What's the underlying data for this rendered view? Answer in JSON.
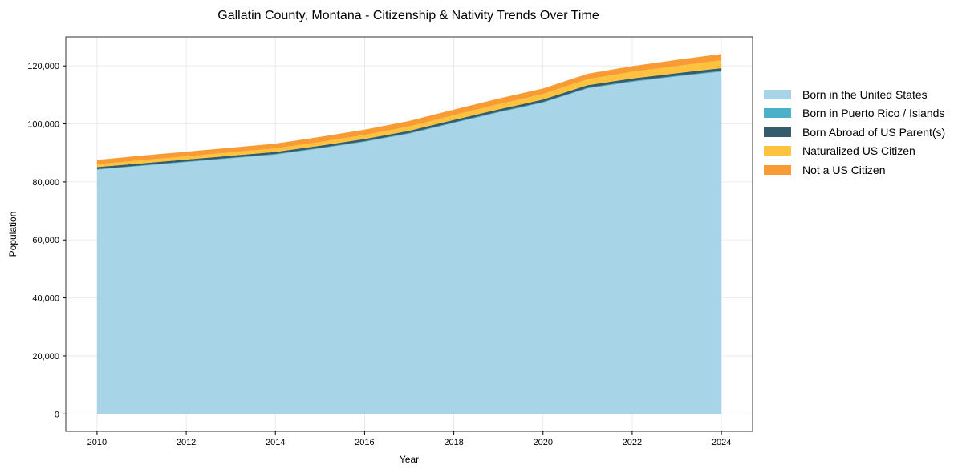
{
  "chart_data": {
    "type": "area",
    "stacked": true,
    "title": "Gallatin County, Montana - Citizenship & Nativity Trends Over Time",
    "xlabel": "Year",
    "ylabel": "Population",
    "xlim": [
      2009.3,
      2024.7
    ],
    "ylim": [
      -6000,
      130000
    ],
    "xticks": [
      "2010",
      "2012",
      "2014",
      "2016",
      "2018",
      "2020",
      "2022",
      "2024"
    ],
    "yticks": [
      "0",
      "20,000",
      "40,000",
      "60,000",
      "80,000",
      "100,000",
      "120,000"
    ],
    "grid": true,
    "legend_position": "right",
    "x": [
      2010,
      2011,
      2012,
      2013,
      2014,
      2015,
      2016,
      2017,
      2018,
      2019,
      2020,
      2021,
      2022,
      2023,
      2024
    ],
    "series": [
      {
        "name": "Born in the United States",
        "color": "#9ecfe6",
        "values": [
          84200,
          85500,
          86800,
          88100,
          89400,
          91500,
          93800,
          96600,
          100300,
          103900,
          107300,
          112200,
          114500,
          116300,
          118000
        ]
      },
      {
        "name": "Born in Puerto Rico / Islands",
        "color": "#3aa7c4",
        "values": [
          200,
          200,
          200,
          210,
          210,
          220,
          230,
          230,
          240,
          250,
          250,
          260,
          270,
          280,
          290
        ]
      },
      {
        "name": "Born Abroad of US Parent(s)",
        "color": "#1f4a5c",
        "values": [
          700,
          700,
          710,
          720,
          730,
          740,
          760,
          780,
          800,
          820,
          840,
          870,
          890,
          910,
          930
        ]
      },
      {
        "name": "Naturalized US Citizen",
        "color": "#fdbd2a",
        "values": [
          1000,
          1050,
          1100,
          1150,
          1200,
          1300,
          1400,
          1500,
          1650,
          1800,
          1900,
          2100,
          2300,
          2500,
          2700
        ]
      },
      {
        "name": "Not a US Citizen",
        "color": "#f7901e",
        "values": [
          1500,
          1600,
          1590,
          1620,
          1660,
          1740,
          1810,
          1890,
          1910,
          1930,
          1910,
          1870,
          1940,
          2110,
          2180
        ]
      }
    ]
  }
}
